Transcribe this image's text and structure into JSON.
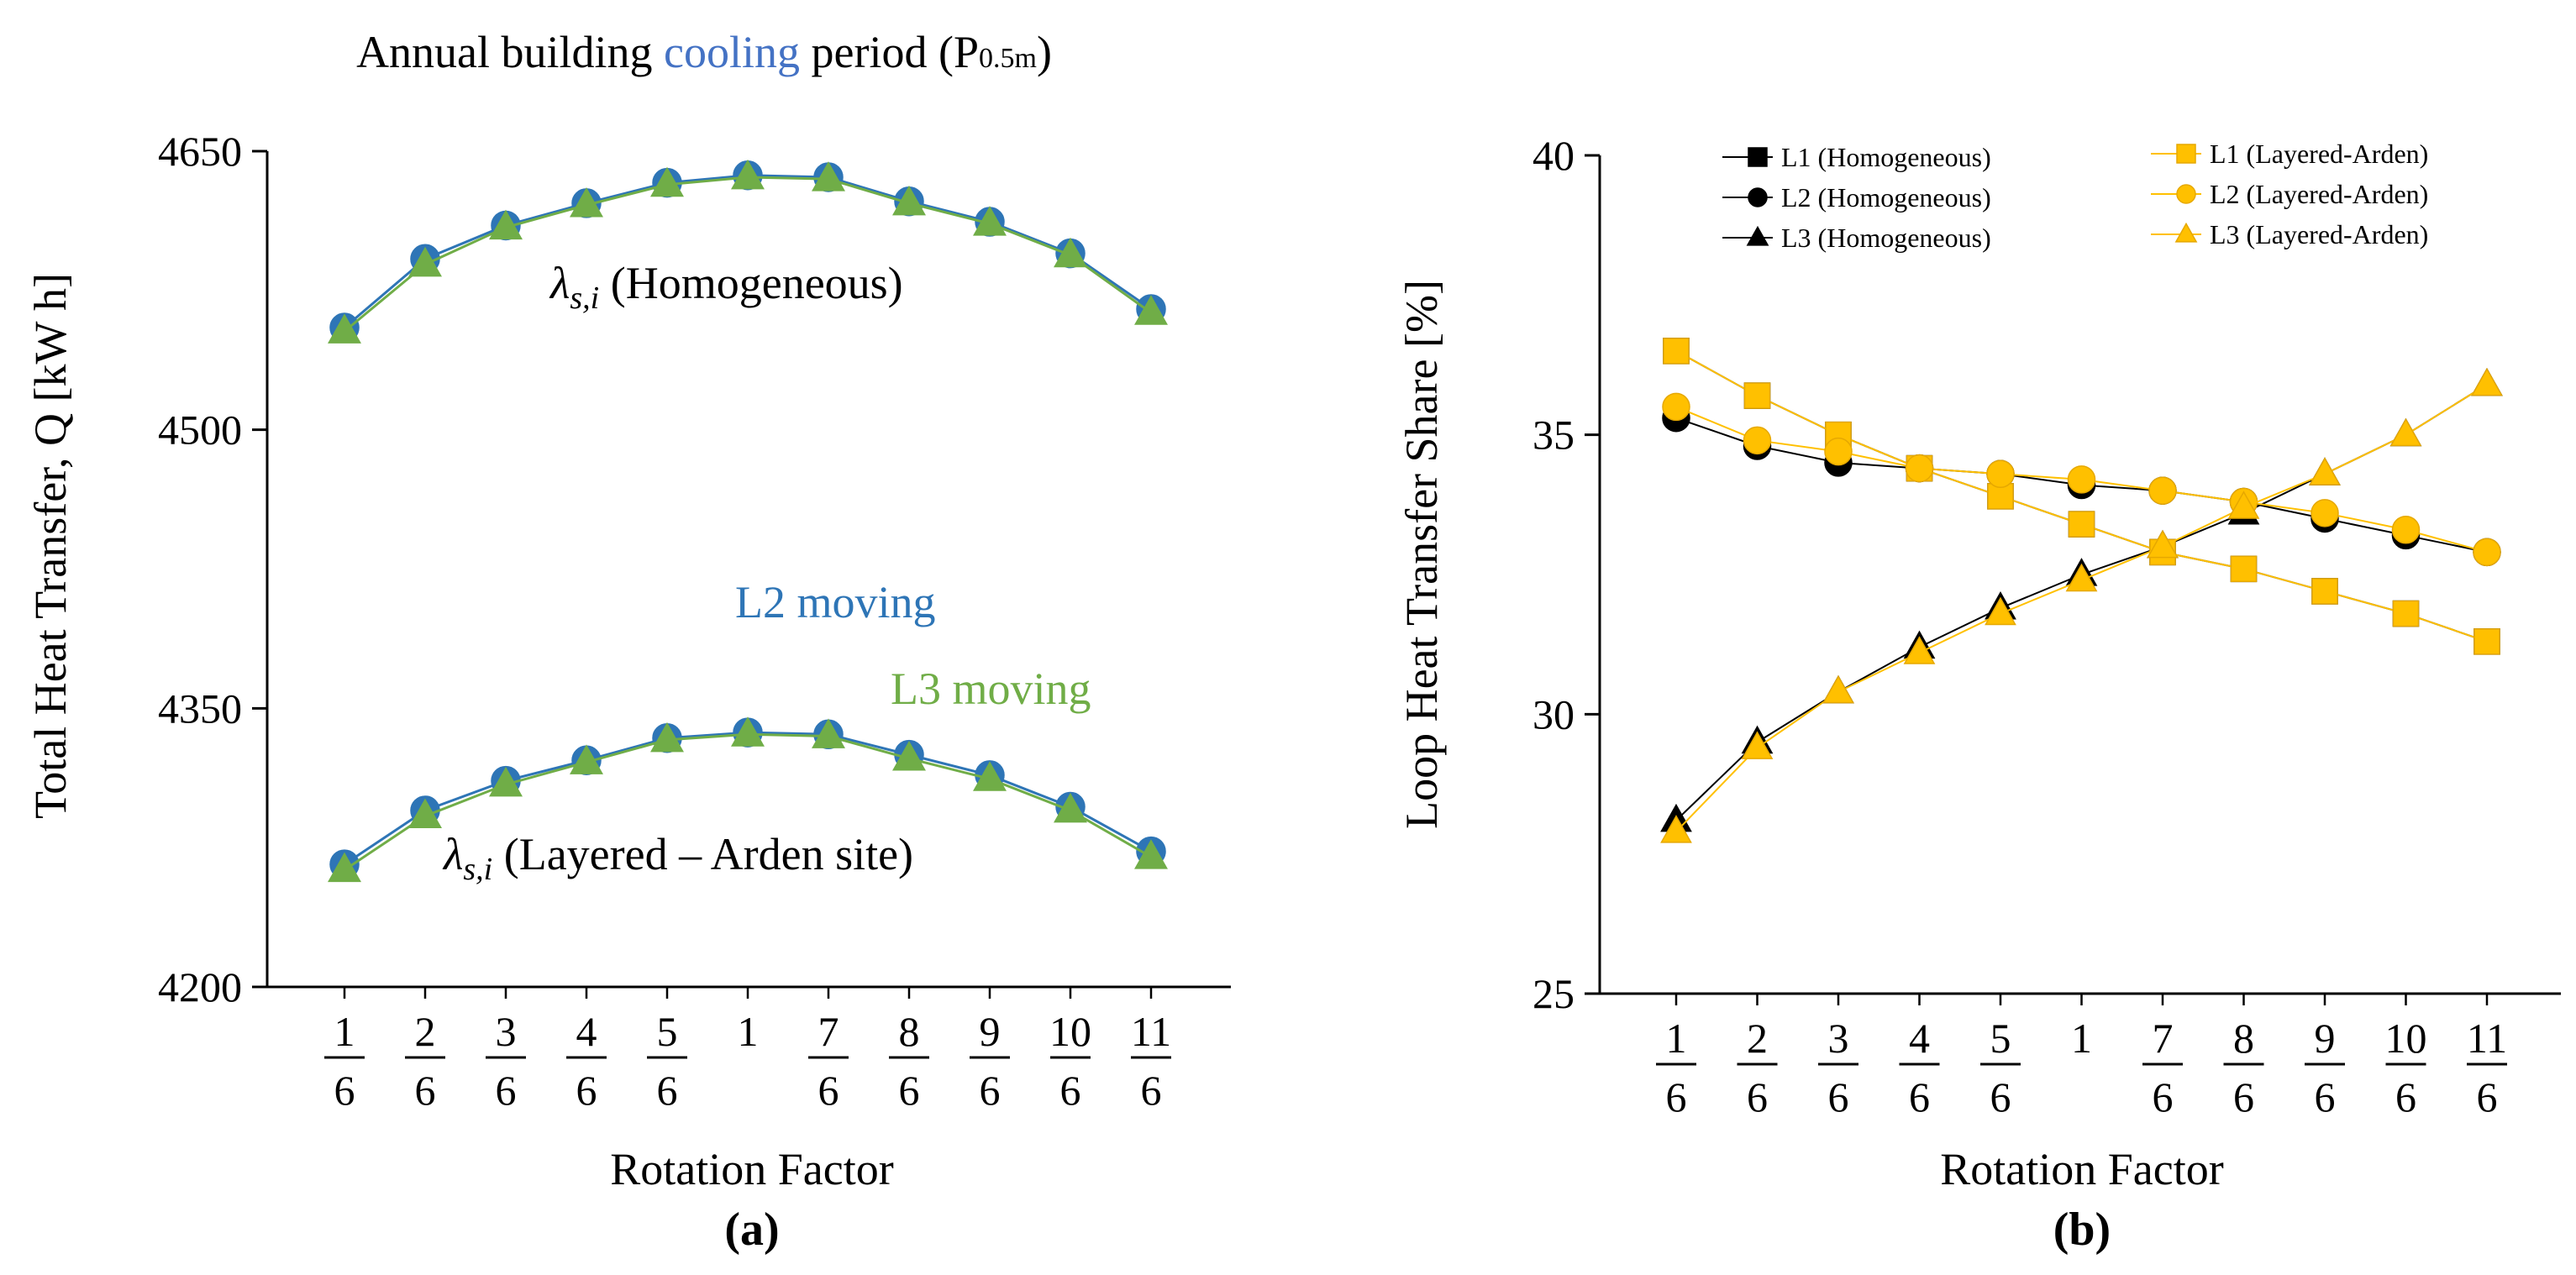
{
  "chart_data": [
    {
      "type": "line",
      "panel": "(a)",
      "title_parts": [
        "Annual building ",
        "cooling",
        " period (P",
        "0.5m",
        ")"
      ],
      "title_colors": {
        "plain": "#000000",
        "highlight": "#4472C4"
      },
      "xlabel": "Rotation Factor",
      "ylabel": "Total Heat Transfer, Q [kW h]",
      "ylim": [
        4200,
        4650
      ],
      "yticks": [
        4200,
        4350,
        4500,
        4650
      ],
      "x": [
        1,
        2,
        3,
        4,
        5,
        6,
        7,
        8,
        9,
        10,
        11
      ],
      "xtick_labels": [
        {
          "num": "1",
          "den": "6"
        },
        {
          "num": "2",
          "den": "6"
        },
        {
          "num": "3",
          "den": "6"
        },
        {
          "num": "4",
          "den": "6"
        },
        {
          "num": "5",
          "den": "6"
        },
        {
          "num": "1",
          "den": ""
        },
        {
          "num": "7",
          "den": "6"
        },
        {
          "num": "8",
          "den": "6"
        },
        {
          "num": "9",
          "den": "6"
        },
        {
          "num": "10",
          "den": "6"
        },
        {
          "num": "11",
          "den": "6"
        }
      ],
      "series": [
        {
          "name": "L2 moving (Homogeneous)",
          "color": "#2E75B6",
          "marker": "circle",
          "values": [
            4555,
            4592,
            4610,
            4622,
            4633,
            4637,
            4636,
            4623,
            4612,
            4595,
            4565
          ]
        },
        {
          "name": "L3 moving (Homogeneous)",
          "color": "#70AD47",
          "marker": "triangle",
          "values": [
            4553,
            4589,
            4609,
            4621,
            4632,
            4636,
            4635,
            4622,
            4611,
            4594,
            4563
          ]
        },
        {
          "name": "L2 moving (Layered)",
          "color": "#2E75B6",
          "marker": "circle",
          "values": [
            4266,
            4295,
            4311,
            4322,
            4334,
            4337,
            4336,
            4325,
            4314,
            4297,
            4273
          ]
        },
        {
          "name": "L3 moving (Layered)",
          "color": "#70AD47",
          "marker": "triangle",
          "values": [
            4263,
            4292,
            4309,
            4321,
            4333,
            4336,
            4335,
            4323,
            4312,
            4295,
            4270
          ]
        }
      ],
      "annotations": {
        "homogeneous": {
          "symbol": "λ",
          "sub": "s,i",
          "text": "(Homogeneous)"
        },
        "layered": {
          "symbol": "λ",
          "sub": "s,i",
          "text": "(Layered – Arden site)"
        },
        "l2_label": "L2 moving",
        "l3_label": "L3 moving",
        "l2_color": "#2E75B6",
        "l3_color": "#70AD47"
      }
    },
    {
      "type": "line",
      "panel": "(b)",
      "xlabel": "Rotation Factor",
      "ylabel": "Loop Heat Transfer Share [%]",
      "ylim": [
        25,
        40
      ],
      "yticks": [
        25,
        30,
        35,
        40
      ],
      "x": [
        1,
        2,
        3,
        4,
        5,
        6,
        7,
        8,
        9,
        10,
        11
      ],
      "series": [
        {
          "name": "L1 (Homogeneous)",
          "color": "#000000",
          "marker": "square",
          "values": [
            36.5,
            35.7,
            35.0,
            34.4,
            33.9,
            33.4,
            32.9,
            32.6,
            32.2,
            31.8,
            31.3
          ]
        },
        {
          "name": "L2 (Homogeneous)",
          "color": "#000000",
          "marker": "circle",
          "values": [
            35.3,
            34.8,
            34.5,
            34.4,
            34.3,
            34.1,
            34.0,
            33.8,
            33.5,
            33.2,
            32.9
          ]
        },
        {
          "name": "L3 (Homogeneous)",
          "color": "#000000",
          "marker": "triangle",
          "values": [
            28.1,
            29.5,
            30.4,
            31.2,
            31.9,
            32.5,
            33.0,
            33.6,
            34.3,
            35.0,
            35.9
          ]
        },
        {
          "name": "L1 (Layered-Arden)",
          "color": "#FFC000",
          "marker": "square",
          "values": [
            36.5,
            35.7,
            35.0,
            34.4,
            33.9,
            33.4,
            32.9,
            32.6,
            32.2,
            31.8,
            31.3
          ]
        },
        {
          "name": "L2 (Layered-Arden)",
          "color": "#FFC000",
          "marker": "circle",
          "values": [
            35.5,
            34.9,
            34.7,
            34.4,
            34.3,
            34.2,
            34.0,
            33.8,
            33.6,
            33.3,
            32.9
          ]
        },
        {
          "name": "L3 (Layered-Arden)",
          "color": "#FFC000",
          "marker": "triangle",
          "values": [
            27.9,
            29.4,
            30.4,
            31.1,
            31.8,
            32.4,
            33.0,
            33.7,
            34.3,
            35.0,
            35.9
          ]
        }
      ]
    }
  ]
}
